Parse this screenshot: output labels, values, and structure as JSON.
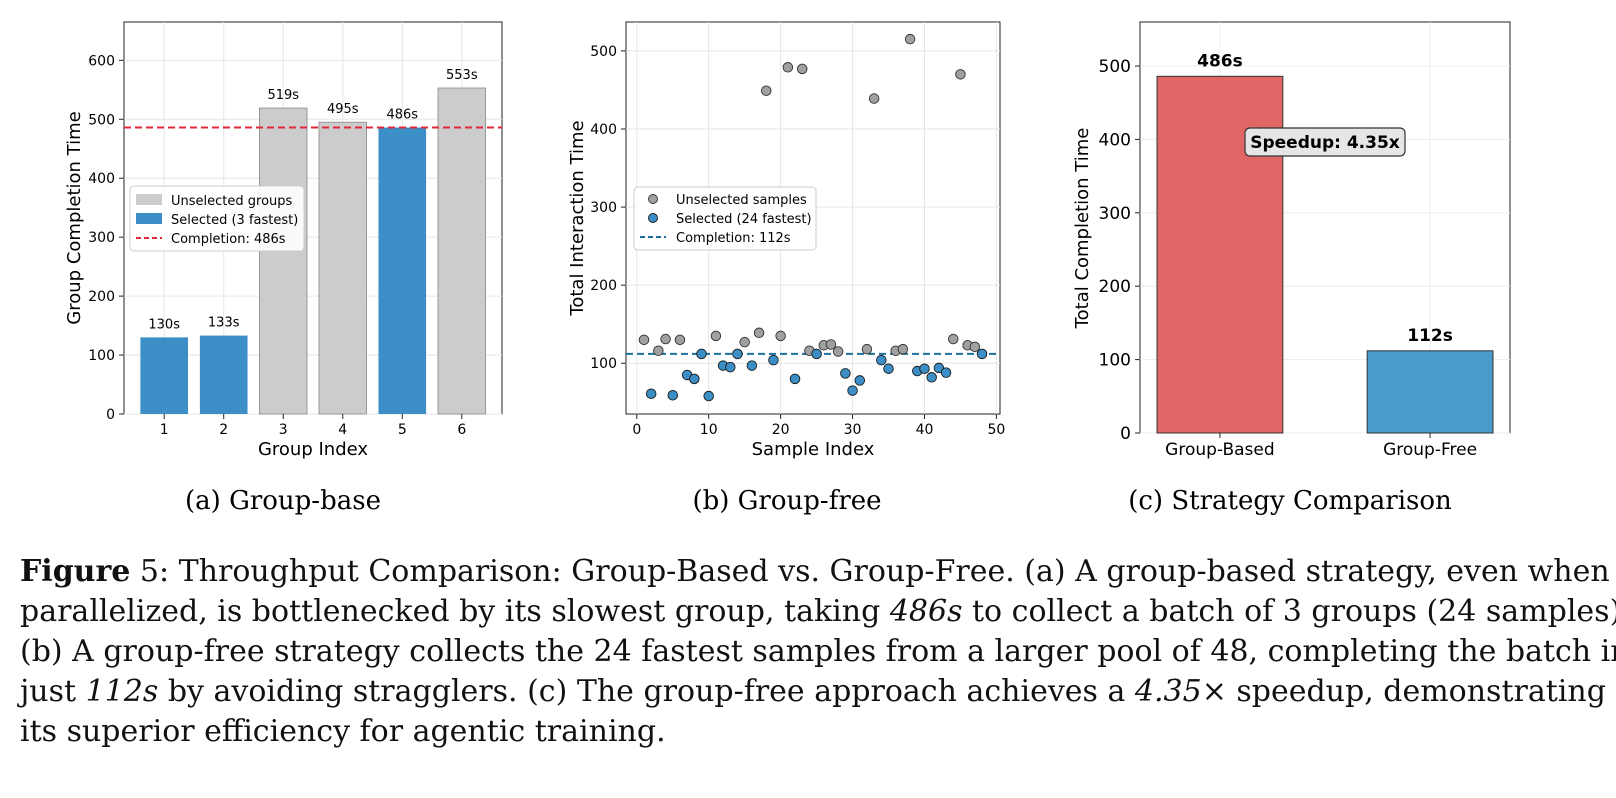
{
  "colors": {
    "selected_blue": "#3b8fc6",
    "unselected_gray": "#cccccc",
    "completion_red": "#e0283a",
    "completion_blue": "#1d6f9c",
    "group_based_red": "#e06666",
    "group_free_blue": "#4a9acb"
  },
  "chart_data": [
    {
      "type": "bar",
      "subcaption": "(a) Group-base",
      "xlabel": "Group Index",
      "ylabel": "Group Completion Time",
      "ylim": [
        0,
        665
      ],
      "yticks": [
        0,
        100,
        200,
        300,
        400,
        500,
        600
      ],
      "categories": [
        "1",
        "2",
        "3",
        "4",
        "5",
        "6"
      ],
      "values": [
        130,
        133,
        519,
        495,
        486,
        553
      ],
      "data_labels": [
        "130s",
        "133s",
        "519s",
        "495s",
        "486s",
        "553s"
      ],
      "selected": [
        true,
        true,
        false,
        false,
        true,
        false
      ],
      "completion_line": 486,
      "grid": true,
      "legend_position": "center-left",
      "legend": [
        {
          "label": "Unselected groups",
          "kind": "bar-gray"
        },
        {
          "label": "Selected (3 fastest)",
          "kind": "bar-blue"
        },
        {
          "label": "Completion: 486s",
          "kind": "dash-red"
        }
      ]
    },
    {
      "type": "scatter",
      "subcaption": "(b) Group-free",
      "xlabel": "Sample Index",
      "ylabel": "Total Interaction Time",
      "xlim": [
        -1.5,
        50.5
      ],
      "ylim": [
        35,
        537
      ],
      "xticks": [
        0,
        10,
        20,
        30,
        40,
        50
      ],
      "yticks": [
        100,
        200,
        300,
        400,
        500
      ],
      "completion_line": 112,
      "grid": true,
      "legend_position": "center-left",
      "legend": [
        {
          "label": "Unselected samples",
          "kind": "dot-gray"
        },
        {
          "label": "Selected (24 fastest)",
          "kind": "dot-blue"
        },
        {
          "label": "Completion: 112s",
          "kind": "dash-blue"
        }
      ],
      "series": [
        {
          "name": "Unselected samples",
          "points": [
            [
              1,
              130
            ],
            [
              3,
              116
            ],
            [
              4,
              131
            ],
            [
              6,
              130
            ],
            [
              11,
              135
            ],
            [
              15,
              127
            ],
            [
              17,
              139
            ],
            [
              20,
              135
            ],
            [
              18,
              449
            ],
            [
              21,
              479
            ],
            [
              23,
              477
            ],
            [
              24,
              116
            ],
            [
              26,
              123
            ],
            [
              27,
              124
            ],
            [
              28,
              115
            ],
            [
              32,
              118
            ],
            [
              33,
              439
            ],
            [
              36,
              116
            ],
            [
              37,
              118
            ],
            [
              38,
              515
            ],
            [
              44,
              131
            ],
            [
              45,
              470
            ],
            [
              46,
              123
            ],
            [
              47,
              121
            ]
          ]
        },
        {
          "name": "Selected (24 fastest)",
          "points": [
            [
              2,
              61
            ],
            [
              5,
              59
            ],
            [
              7,
              85
            ],
            [
              8,
              80
            ],
            [
              9,
              112
            ],
            [
              10,
              58
            ],
            [
              12,
              97
            ],
            [
              13,
              95
            ],
            [
              14,
              112
            ],
            [
              16,
              97
            ],
            [
              19,
              104
            ],
            [
              22,
              80
            ],
            [
              25,
              112
            ],
            [
              29,
              87
            ],
            [
              30,
              65
            ],
            [
              31,
              78
            ],
            [
              34,
              104
            ],
            [
              35,
              93
            ],
            [
              39,
              90
            ],
            [
              40,
              93
            ],
            [
              41,
              82
            ],
            [
              42,
              94
            ],
            [
              43,
              88
            ],
            [
              48,
              112
            ]
          ]
        }
      ]
    },
    {
      "type": "bar",
      "subcaption": "(c) Strategy Comparison",
      "xlabel": "",
      "ylabel": "Total Completion Time",
      "ylim": [
        0,
        560
      ],
      "yticks": [
        0,
        100,
        200,
        300,
        400,
        500
      ],
      "categories": [
        "Group-Based",
        "Group-Free"
      ],
      "values": [
        486,
        112
      ],
      "data_labels": [
        "486s",
        "112s"
      ],
      "annotation": "Speedup: 4.35x",
      "grid": true
    }
  ],
  "caption": {
    "figure_label": "Figure",
    "figure_number": " 5",
    "line1_rest": ": Throughput Comparison: Group-Based vs. Group-Free. (a) A group-based strategy, even when",
    "line2a": "parallelized, is bottlenecked by its slowest group, taking ",
    "line2_math": "486s",
    "line2b": " to collect a batch of 3 groups (24 samples).",
    "line3": "(b) A group-free strategy collects the 24 fastest samples from a larger pool of 48, completing the batch in",
    "line4a": "just ",
    "line4_math": "112s",
    "line4b": " by avoiding stragglers. (c) The group-free approach achieves a ",
    "line4_math2": "4.35×",
    "line4c": " speedup, demonstrating",
    "line5": "its superior efficiency for agentic training."
  }
}
